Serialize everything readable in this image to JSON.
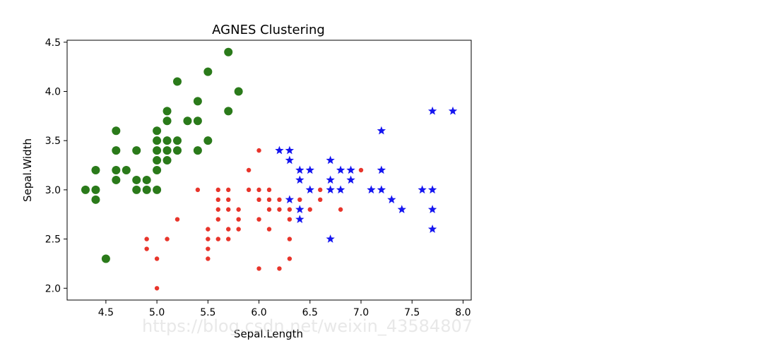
{
  "chart_data": {
    "type": "scatter",
    "title": "AGNES Clustering",
    "xlabel": "Sepal.Length",
    "ylabel": "Sepal.Width",
    "xlim": [
      4.12,
      8.08
    ],
    "ylim": [
      1.88,
      4.52
    ],
    "xticks": [
      "4.5",
      "5.0",
      "5.5",
      "6.0",
      "6.5",
      "7.0",
      "7.5",
      "8.0"
    ],
    "yticks": [
      "2.0",
      "2.5",
      "3.0",
      "3.5",
      "4.0",
      "4.5"
    ],
    "watermark": "https://blog.csdn.net/weixin_43584807",
    "series": [
      {
        "marker": "circle-large",
        "color": "#2a7a1a",
        "points": [
          [
            4.3,
            3.0
          ],
          [
            4.4,
            3.0
          ],
          [
            4.4,
            2.9
          ],
          [
            4.4,
            3.2
          ],
          [
            4.5,
            2.3
          ],
          [
            4.6,
            3.1
          ],
          [
            4.6,
            3.2
          ],
          [
            4.6,
            3.4
          ],
          [
            4.6,
            3.6
          ],
          [
            4.7,
            3.2
          ],
          [
            4.8,
            3.0
          ],
          [
            4.8,
            3.1
          ],
          [
            4.8,
            3.4
          ],
          [
            4.9,
            3.0
          ],
          [
            4.9,
            3.1
          ],
          [
            5.0,
            3.0
          ],
          [
            5.0,
            3.2
          ],
          [
            5.0,
            3.3
          ],
          [
            5.0,
            3.4
          ],
          [
            5.0,
            3.5
          ],
          [
            5.0,
            3.6
          ],
          [
            5.1,
            3.3
          ],
          [
            5.1,
            3.4
          ],
          [
            5.1,
            3.5
          ],
          [
            5.1,
            3.7
          ],
          [
            5.1,
            3.8
          ],
          [
            5.2,
            3.4
          ],
          [
            5.2,
            3.5
          ],
          [
            5.2,
            4.1
          ],
          [
            5.3,
            3.7
          ],
          [
            5.4,
            3.4
          ],
          [
            5.4,
            3.7
          ],
          [
            5.4,
            3.9
          ],
          [
            5.5,
            3.5
          ],
          [
            5.5,
            4.2
          ],
          [
            5.7,
            3.8
          ],
          [
            5.7,
            4.4
          ],
          [
            5.8,
            4.0
          ]
        ]
      },
      {
        "marker": "circle-small",
        "color": "#e8352b",
        "points": [
          [
            4.9,
            2.4
          ],
          [
            4.9,
            2.5
          ],
          [
            5.0,
            2.0
          ],
          [
            5.0,
            2.3
          ],
          [
            5.1,
            2.5
          ],
          [
            5.2,
            2.7
          ],
          [
            5.4,
            3.0
          ],
          [
            5.5,
            2.3
          ],
          [
            5.5,
            2.4
          ],
          [
            5.5,
            2.5
          ],
          [
            5.5,
            2.6
          ],
          [
            5.6,
            2.5
          ],
          [
            5.6,
            2.7
          ],
          [
            5.6,
            2.8
          ],
          [
            5.6,
            2.9
          ],
          [
            5.6,
            3.0
          ],
          [
            5.7,
            2.5
          ],
          [
            5.7,
            2.6
          ],
          [
            5.7,
            2.8
          ],
          [
            5.7,
            2.9
          ],
          [
            5.7,
            3.0
          ],
          [
            5.8,
            2.6
          ],
          [
            5.8,
            2.7
          ],
          [
            5.8,
            2.8
          ],
          [
            5.9,
            3.0
          ],
          [
            5.9,
            3.2
          ],
          [
            6.0,
            2.2
          ],
          [
            6.0,
            2.7
          ],
          [
            6.0,
            2.9
          ],
          [
            6.0,
            3.0
          ],
          [
            6.0,
            3.4
          ],
          [
            6.1,
            2.6
          ],
          [
            6.1,
            2.8
          ],
          [
            6.1,
            2.9
          ],
          [
            6.1,
            3.0
          ],
          [
            6.2,
            2.2
          ],
          [
            6.2,
            2.8
          ],
          [
            6.2,
            2.9
          ],
          [
            6.3,
            2.3
          ],
          [
            6.3,
            2.5
          ],
          [
            6.3,
            2.7
          ],
          [
            6.3,
            2.8
          ],
          [
            6.4,
            2.9
          ],
          [
            6.5,
            2.8
          ],
          [
            6.6,
            2.9
          ],
          [
            6.6,
            3.0
          ],
          [
            6.8,
            2.8
          ],
          [
            7.0,
            3.2
          ]
        ]
      },
      {
        "marker": "star",
        "color": "#1515f0",
        "points": [
          [
            6.2,
            3.4
          ],
          [
            6.3,
            2.9
          ],
          [
            6.3,
            3.3
          ],
          [
            6.3,
            3.4
          ],
          [
            6.4,
            2.7
          ],
          [
            6.4,
            2.8
          ],
          [
            6.4,
            3.1
          ],
          [
            6.4,
            3.2
          ],
          [
            6.5,
            3.0
          ],
          [
            6.5,
            3.2
          ],
          [
            6.7,
            2.5
          ],
          [
            6.7,
            3.0
          ],
          [
            6.7,
            3.1
          ],
          [
            6.7,
            3.3
          ],
          [
            6.8,
            3.0
          ],
          [
            6.8,
            3.2
          ],
          [
            6.9,
            3.1
          ],
          [
            6.9,
            3.2
          ],
          [
            7.1,
            3.0
          ],
          [
            7.2,
            3.0
          ],
          [
            7.2,
            3.2
          ],
          [
            7.2,
            3.6
          ],
          [
            7.3,
            2.9
          ],
          [
            7.4,
            2.8
          ],
          [
            7.6,
            3.0
          ],
          [
            7.7,
            2.6
          ],
          [
            7.7,
            2.8
          ],
          [
            7.7,
            3.0
          ],
          [
            7.7,
            3.8
          ],
          [
            7.9,
            3.8
          ]
        ]
      }
    ]
  }
}
